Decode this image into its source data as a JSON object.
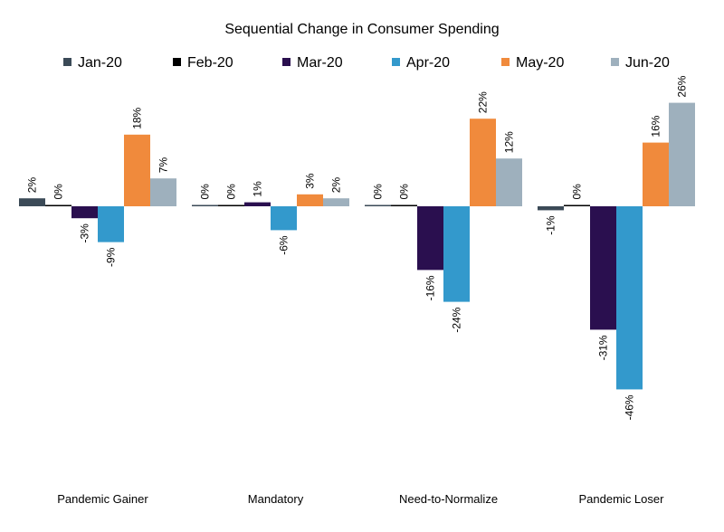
{
  "chart_data": {
    "type": "bar",
    "title": "Sequential Change in Consumer Spending",
    "xlabel": "",
    "ylabel": "",
    "grid": false,
    "legend_position": "top",
    "categories": [
      "Pandemic Gainer",
      "Mandatory",
      "Need-to-Normalize",
      "Pandemic Loser"
    ],
    "ylim": [
      -70,
      30
    ],
    "series": [
      {
        "name": "Jan-20",
        "color": "#3b4a57",
        "values": [
          2,
          0,
          0,
          -1
        ],
        "labels": [
          "2%",
          "0%",
          "0%",
          "-1%"
        ]
      },
      {
        "name": "Feb-20",
        "color": "#000000",
        "values": [
          0,
          0,
          0,
          0
        ],
        "labels": [
          "0%",
          "0%",
          "0%",
          "0%"
        ]
      },
      {
        "name": "Mar-20",
        "color": "#2a0f4f",
        "values": [
          -3,
          1,
          -16,
          -31
        ],
        "labels": [
          "-3%",
          "1%",
          "-16%",
          "-31%"
        ]
      },
      {
        "name": "Apr-20",
        "color": "#3399cc",
        "values": [
          -9,
          -6,
          -24,
          -46
        ],
        "labels": [
          "-9%",
          "-6%",
          "-24%",
          "-46%"
        ]
      },
      {
        "name": "May-20",
        "color": "#f08a3c",
        "values": [
          18,
          3,
          22,
          16
        ],
        "labels": [
          "18%",
          "3%",
          "22%",
          "16%"
        ]
      },
      {
        "name": "Jun-20",
        "color": "#9eb0bd",
        "values": [
          7,
          2,
          12,
          26
        ],
        "labels": [
          "7%",
          "2%",
          "12%",
          "26%"
        ]
      }
    ]
  }
}
